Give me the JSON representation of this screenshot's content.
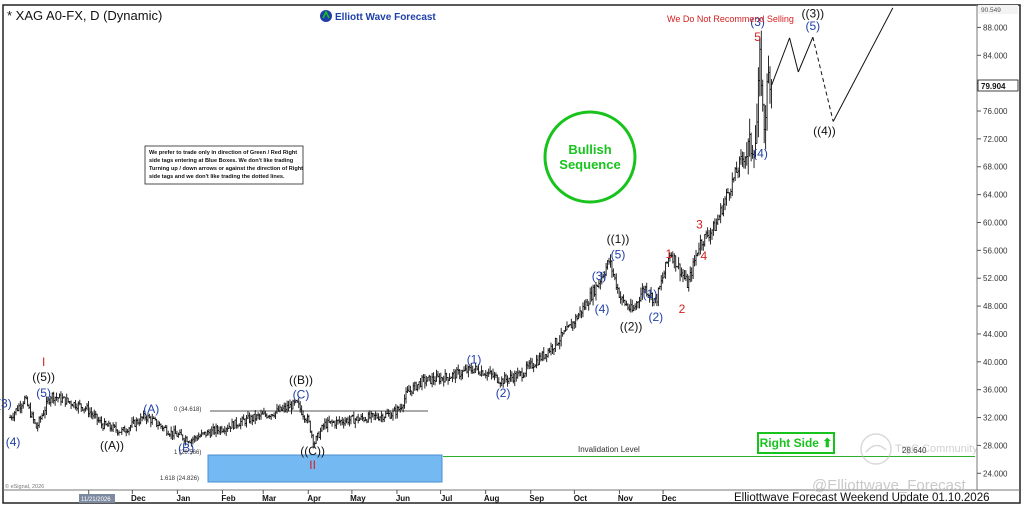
{
  "header": {
    "symbol_title": "* XAG A0-FX, D (Dynamic)",
    "brand": "Elliott Wave Forecast",
    "warning": "We Do Not Recommend Selling",
    "sequence_badge": "Bullish\nSequence",
    "disclaimer": [
      "We prefer to trade only in direction of Green / Red Right",
      "side tags entering at Blue Boxes. We don't like trading",
      "Turning up / down arrows or against the direction of Right",
      "side tags and we don't like trading the dotted lines."
    ]
  },
  "footer": {
    "update_text": "Elliottwave Forecast Weekend  Update 01.10.2026",
    "watermark": "@Elliottwave_Forecast",
    "community": "TrgC Community",
    "copyright": "© eSignal, 2026",
    "date_box": "11/21/2026"
  },
  "levels": {
    "invalidation_label": "Invalidation Level",
    "invalidation_value": "28.640",
    "fib_high": "0 (34.618)",
    "fib_mid": "1 (28.566)",
    "fib_low": "1.618 (24.826)",
    "right_side_label": "Right Side ⬆",
    "current_price": "79.904",
    "top_price": "90.549"
  },
  "colors": {
    "wave_blue": "#1f3fa8",
    "wave_red": "#d31f1f",
    "bullish_green": "#19c31e",
    "blue_box": "#74b9f2",
    "invalidation_line": "#2bb02b"
  },
  "chart_data": {
    "type": "ohlc",
    "ylim": [
      21.6,
      90.5
    ],
    "y_ticks": [
      "88.000",
      "84.000",
      "80.000",
      "76.000",
      "72.000",
      "68.000",
      "64.000",
      "60.000",
      "56.000",
      "52.000",
      "48.000",
      "44.000",
      "40.000",
      "36.000",
      "32.000",
      "28.000",
      "24.000"
    ],
    "x_ticks": [
      "Nov",
      "Dec",
      "Jan",
      "Feb",
      "Mar",
      "Apr",
      "May",
      "Jun",
      "Jul",
      "Aug",
      "Sep",
      "Oct",
      "Nov",
      "Dec"
    ],
    "price_path": [
      [
        "2025-09-08",
        32.0
      ],
      [
        "2025-09-18",
        34.7
      ],
      [
        "2025-09-26",
        30.5
      ],
      [
        "2025-10-06",
        35.2
      ],
      [
        "2025-10-18",
        34.3
      ],
      [
        "2025-10-30",
        33.4
      ],
      [
        "2025-11-10",
        31.0
      ],
      [
        "2025-11-24",
        30.0
      ],
      [
        "2025-12-10",
        32.2
      ],
      [
        "2025-12-28",
        29.8
      ],
      [
        "2026-01-10",
        28.8
      ],
      [
        "2026-01-18",
        29.5
      ],
      [
        "2026-02-01",
        30.5
      ],
      [
        "2026-02-20",
        31.8
      ],
      [
        "2026-03-10",
        32.8
      ],
      [
        "2026-03-24",
        34.0
      ],
      [
        "2026-04-01",
        31.5
      ],
      [
        "2026-04-05",
        28.3
      ],
      [
        "2026-04-12",
        31.0
      ],
      [
        "2026-04-26",
        31.6
      ],
      [
        "2026-05-14",
        32.0
      ],
      [
        "2026-05-28",
        32.5
      ],
      [
        "2026-06-03",
        33.3
      ],
      [
        "2026-06-08",
        35.5
      ],
      [
        "2026-06-18",
        37.2
      ],
      [
        "2026-07-05",
        37.8
      ],
      [
        "2026-07-24",
        39.0
      ],
      [
        "2026-08-02",
        38.4
      ],
      [
        "2026-08-12",
        37.3
      ],
      [
        "2026-08-25",
        38.2
      ],
      [
        "2026-09-10",
        41.0
      ],
      [
        "2026-09-26",
        44.4
      ],
      [
        "2026-10-08",
        48.0
      ],
      [
        "2026-10-18",
        51.5
      ],
      [
        "2026-10-25",
        54.5
      ],
      [
        "2026-11-02",
        49.0
      ],
      [
        "2026-11-10",
        47.2
      ],
      [
        "2026-11-18",
        50.8
      ],
      [
        "2026-11-26",
        48.6
      ],
      [
        "2026-12-02",
        53.0
      ],
      [
        "2026-12-06",
        55.8
      ],
      [
        "2026-12-12",
        53.5
      ],
      [
        "2026-12-18",
        51.0
      ],
      [
        "2026-12-26",
        57.0
      ],
      [
        "2027-01-06",
        59.5
      ],
      [
        "2027-01-14",
        64.0
      ],
      [
        "2027-01-24",
        69.0
      ],
      [
        "2027-02-03",
        72.0
      ],
      [
        "2027-02-06",
        84.5
      ],
      [
        "2027-02-08",
        73.0
      ],
      [
        "2027-02-12",
        82.0
      ],
      [
        "2027-02-14",
        79.9
      ]
    ],
    "projection": [
      [
        "2027-02-14",
        79.9,
        "solid"
      ],
      [
        "2027-02-26",
        86.5,
        "solid"
      ],
      [
        "2027-03-04",
        81.6,
        "solid"
      ],
      [
        "2027-03-14",
        86.6,
        "solid"
      ],
      [
        "2027-03-28",
        74.5,
        "dashed"
      ],
      [
        "2027-05-08",
        90.8,
        "solid"
      ]
    ],
    "wave_labels": [
      {
        "text": "(3)",
        "x": "2025-09-04",
        "y": 34.0,
        "color": "blue"
      },
      {
        "text": "(4)",
        "x": "2025-09-10",
        "y": 28.5,
        "color": "blue"
      },
      {
        "text": "(5)",
        "x": "2025-10-01",
        "y": 35.5,
        "color": "blue"
      },
      {
        "text": "((5))",
        "x": "2025-10-01",
        "y": 37.8,
        "color": "black"
      },
      {
        "text": "I",
        "x": "2025-10-01",
        "y": 40.0,
        "color": "red"
      },
      {
        "text": "((A))",
        "x": "2025-11-17",
        "y": 28.0,
        "color": "black"
      },
      {
        "text": "(A)",
        "x": "2025-12-14",
        "y": 33.2,
        "color": "blue"
      },
      {
        "text": "(B)",
        "x": "2026-01-07",
        "y": 27.6,
        "color": "blue"
      },
      {
        "text": "((B))",
        "x": "2026-03-27",
        "y": 37.4,
        "color": "black"
      },
      {
        "text": "(C)",
        "x": "2026-03-27",
        "y": 35.3,
        "color": "blue"
      },
      {
        "text": "((C))",
        "x": "2026-04-04",
        "y": 27.2,
        "color": "black"
      },
      {
        "text": "II",
        "x": "2026-04-04",
        "y": 25.2,
        "color": "red"
      },
      {
        "text": "(1)",
        "x": "2026-07-24",
        "y": 40.3,
        "color": "blue"
      },
      {
        "text": "(2)",
        "x": "2026-08-13",
        "y": 35.5,
        "color": "blue"
      },
      {
        "text": "(3)",
        "x": "2026-10-18",
        "y": 52.3,
        "color": "blue"
      },
      {
        "text": "(4)",
        "x": "2026-10-20",
        "y": 47.6,
        "color": "blue"
      },
      {
        "text": "(5)",
        "x": "2026-10-31",
        "y": 55.4,
        "color": "blue"
      },
      {
        "text": "((1))",
        "x": "2026-10-31",
        "y": 57.6,
        "color": "black"
      },
      {
        "text": "((2))",
        "x": "2026-11-09",
        "y": 45.1,
        "color": "black"
      },
      {
        "text": "(1)",
        "x": "2026-11-22",
        "y": 49.7,
        "color": "blue"
      },
      {
        "text": "(2)",
        "x": "2026-11-26",
        "y": 46.4,
        "color": "blue"
      },
      {
        "text": "1",
        "x": "2026-12-05",
        "y": 55.5,
        "color": "red"
      },
      {
        "text": "2",
        "x": "2026-12-14",
        "y": 47.6,
        "color": "red"
      },
      {
        "text": "3",
        "x": "2026-12-26",
        "y": 59.7,
        "color": "red"
      },
      {
        "text": "4",
        "x": "2026-12-29",
        "y": 55.2,
        "color": "red"
      },
      {
        "text": "(3)",
        "x": "2027-02-04",
        "y": 88.8,
        "color": "blue"
      },
      {
        "text": "5",
        "x": "2027-02-04",
        "y": 86.6,
        "color": "red"
      },
      {
        "text": "(4)",
        "x": "2027-02-06",
        "y": 69.9,
        "color": "blue"
      },
      {
        "text": "((3))",
        "x": "2027-03-14",
        "y": 90.0,
        "color": "black"
      },
      {
        "text": "(5)",
        "x": "2027-03-14",
        "y": 88.2,
        "color": "blue"
      },
      {
        "text": "((4))",
        "x": "2027-03-22",
        "y": 73.1,
        "color": "black"
      }
    ]
  }
}
